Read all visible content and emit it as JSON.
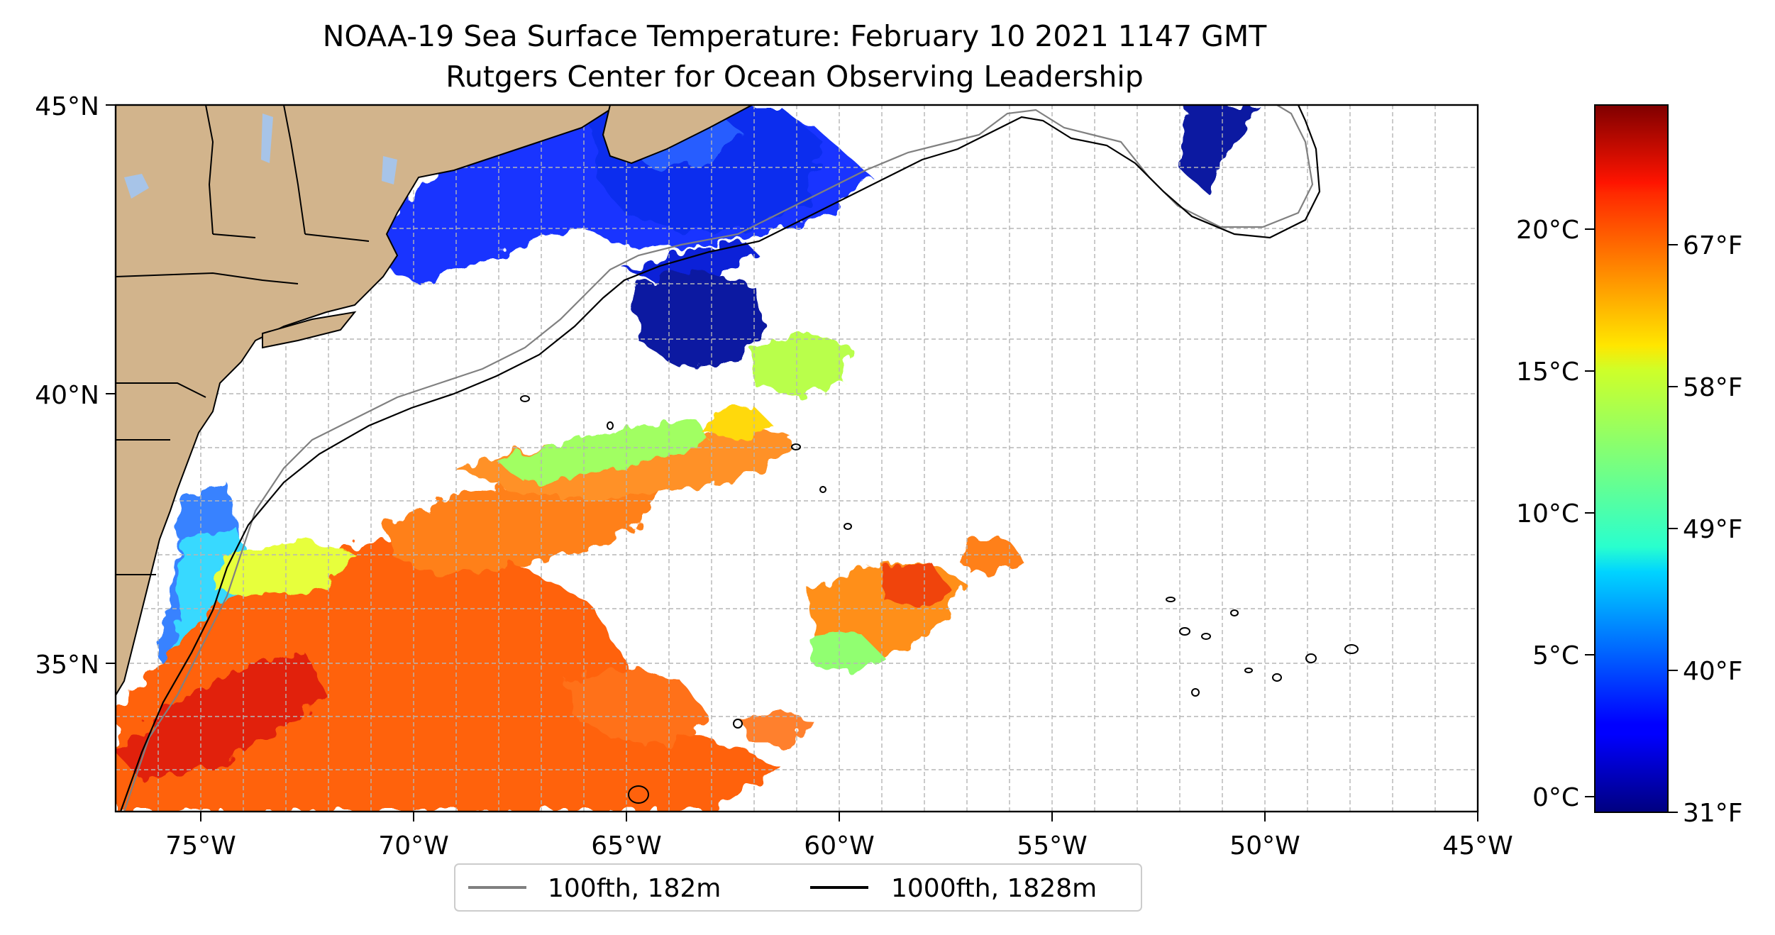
{
  "title": {
    "line1": "NOAA-19 Sea Surface Temperature: February 10 2021 1147 GMT",
    "line2": "Rutgers Center for Ocean Observing Leadership"
  },
  "map": {
    "lon_range": [
      -77,
      -45
    ],
    "lat_range": [
      32.2,
      45
    ],
    "x_ticks": [
      {
        "value": -75,
        "label": "75°W"
      },
      {
        "value": -70,
        "label": "70°W"
      },
      {
        "value": -65,
        "label": "65°W"
      },
      {
        "value": -60,
        "label": "60°W"
      },
      {
        "value": -55,
        "label": "55°W"
      },
      {
        "value": -50,
        "label": "50°W"
      },
      {
        "value": -45,
        "label": "45°W"
      }
    ],
    "y_ticks": [
      {
        "value": 35,
        "label": "35°N"
      },
      {
        "value": 40,
        "label": "40°N"
      },
      {
        "value": 45,
        "label": "45°N"
      }
    ],
    "grid": true,
    "colors": {
      "land": "#d2b48c",
      "lakes": "#a7c4e8",
      "contour_100fth": "#808080",
      "contour_1000fth": "#000000",
      "grid": "#b5b5b5"
    }
  },
  "legend": {
    "placement": "bottom-center",
    "items": [
      {
        "label": "100fth, 182m",
        "color": "#808080"
      },
      {
        "label": "1000fth, 1828m",
        "color": "#000000"
      }
    ]
  },
  "colorbar": {
    "colormap": "jet",
    "celsius_ticks": [
      {
        "value": 0,
        "label": "0°C"
      },
      {
        "value": 5,
        "label": "5°C"
      },
      {
        "value": 10,
        "label": "10°C"
      },
      {
        "value": 15,
        "label": "15°C"
      },
      {
        "value": 20,
        "label": "20°C"
      }
    ],
    "fahrenheit_ticks": [
      {
        "value": 31,
        "label": "31°F"
      },
      {
        "value": 40,
        "label": "40°F"
      },
      {
        "value": 49,
        "label": "49°F"
      },
      {
        "value": 58,
        "label": "58°F"
      },
      {
        "value": 67,
        "label": "67°F"
      }
    ],
    "range_celsius": [
      -0.56,
      24.44
    ]
  }
}
